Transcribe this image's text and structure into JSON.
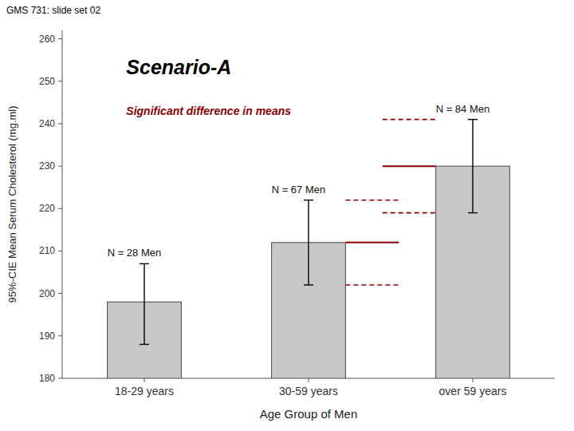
{
  "chart_data": {
    "type": "bar",
    "title": "Scenario-A",
    "subtitle": "Significant difference in means",
    "suptitle": "GMS 731: slide set 02",
    "xlabel": "Age Group of Men",
    "ylabel": "95%-CIE Mean Serum Cholesterol (mg.ml)",
    "categories": [
      "18-29 years",
      "30-59 years",
      "over 59 years"
    ],
    "values": [
      198,
      212,
      230
    ],
    "ci_low": [
      188,
      202,
      219
    ],
    "ci_high": [
      207,
      222,
      241
    ],
    "color": "#c8c8c8",
    "highlight_color": "#8b0000",
    "annotations": [
      "N = 28 Men",
      "N = 67 Men",
      "N = 84 Men"
    ],
    "ylim": [
      180,
      262
    ],
    "yticks": [
      180,
      190,
      200,
      210,
      220,
      230,
      240,
      250,
      260
    ],
    "grid": false
  }
}
